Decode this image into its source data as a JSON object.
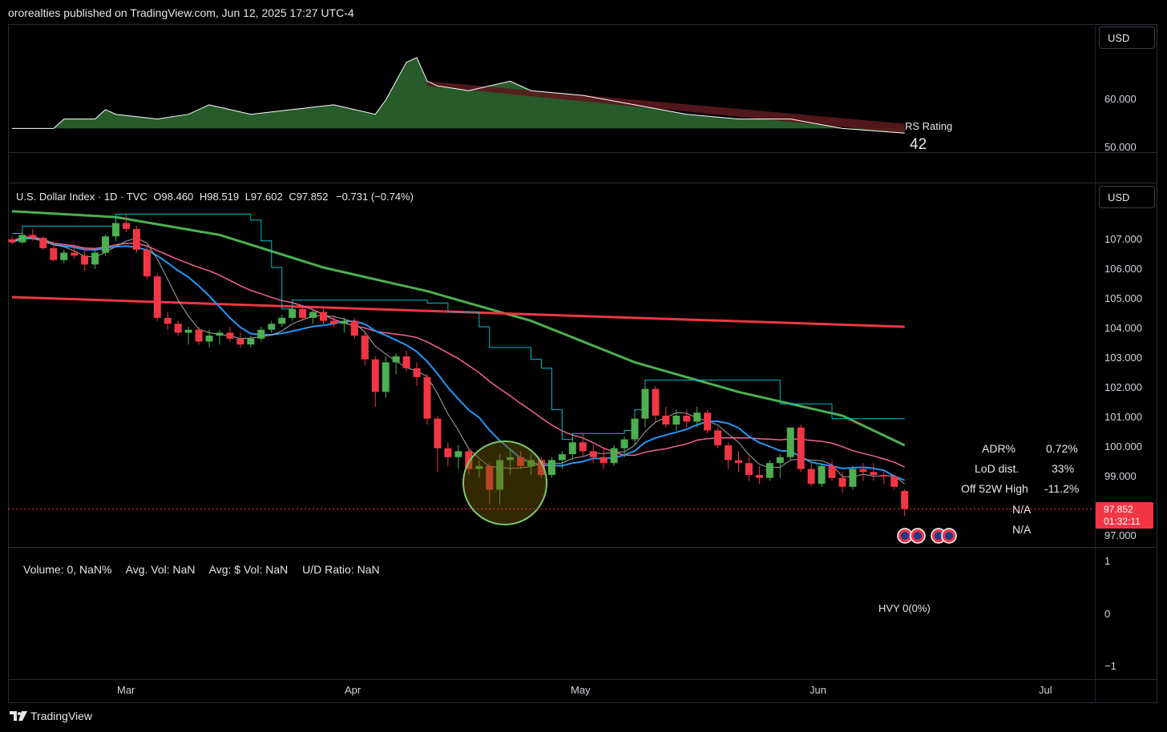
{
  "header": {
    "publisher_line": "ororealties published on TradingView.com, Jun 12, 2025 17:27 UTC-4"
  },
  "currency_buttons": [
    "USD",
    "USD"
  ],
  "rs_pane": {
    "label": "RS Rating",
    "value": "42",
    "axis_ticks": [
      "60.000",
      "50.000"
    ],
    "colors": {
      "above": "#2e6b33",
      "below": "#5a1a1d",
      "line": "#ffffff",
      "baseline": "#ff5252"
    }
  },
  "legend": {
    "symbol": "U.S. Dollar Index · 1D · TVC",
    "open_label": "O",
    "open": "98.460",
    "high_label": "H",
    "high": "98.519",
    "low_label": "L",
    "low": "97.602",
    "close_label": "C",
    "close": "97.852",
    "change": "−0.731 (−0.74%)"
  },
  "price_axis": [
    "107.000",
    "106.000",
    "105.000",
    "104.000",
    "103.000",
    "102.000",
    "101.000",
    "100.000",
    "99.000",
    "97.000"
  ],
  "last_price": {
    "price": "97.852",
    "countdown": "01:32:11"
  },
  "stats": [
    {
      "label": "ADR%",
      "value": "0.72%"
    },
    {
      "label": "LoD dist.",
      "value": "33%"
    },
    {
      "label": "Off 52W High",
      "value": "-11.2%"
    },
    {
      "label": "",
      "value": "N/A"
    },
    {
      "label": "",
      "value": "N/A"
    }
  ],
  "volume_pane": {
    "volume": "Volume: 0, NaN%",
    "avg_vol": "Avg. Vol: NaN",
    "avg_dollar_vol": "Avg: $ Vol: NaN",
    "ud_ratio": "U/D Ratio: NaN",
    "hvy": "HVY 0(0%)",
    "axis_ticks": [
      "1",
      "0",
      "−1"
    ]
  },
  "time_axis": [
    "Mar",
    "Apr",
    "May",
    "Jun",
    "Jul"
  ],
  "footer": {
    "brand": "TradingView"
  },
  "colors": {
    "up": "#4caf50",
    "down": "#f23645",
    "ma_green": "#4caf50",
    "ma_red": "#f23645",
    "ma_pink": "#f06292",
    "ma_blue": "#2196f3",
    "ma_cyan": "#00bcd4",
    "highlight_circle": "#7bc86c"
  },
  "chart_data": {
    "type": "candlestick",
    "candles": [
      [
        106.95,
        107.05,
        106.8,
        106.85
      ],
      [
        106.85,
        107.2,
        106.8,
        107.1
      ],
      [
        107.1,
        107.3,
        106.9,
        107.0
      ],
      [
        107.0,
        107.05,
        106.6,
        106.65
      ],
      [
        106.65,
        106.9,
        106.2,
        106.25
      ],
      [
        106.25,
        106.6,
        106.15,
        106.5
      ],
      [
        106.5,
        106.8,
        106.3,
        106.4
      ],
      [
        106.4,
        106.7,
        105.9,
        106.1
      ],
      [
        106.1,
        106.6,
        105.95,
        106.5
      ],
      [
        106.5,
        107.1,
        106.4,
        107.05
      ],
      [
        107.05,
        107.6,
        106.9,
        107.5
      ],
      [
        107.5,
        107.8,
        107.2,
        107.3
      ],
      [
        107.3,
        107.4,
        106.5,
        106.6
      ],
      [
        106.6,
        106.7,
        105.6,
        105.7
      ],
      [
        105.7,
        105.8,
        104.2,
        104.3
      ],
      [
        104.3,
        104.5,
        103.9,
        104.1
      ],
      [
        104.1,
        104.2,
        103.7,
        103.8
      ],
      [
        103.8,
        104.0,
        103.4,
        103.9
      ],
      [
        103.9,
        104.0,
        103.4,
        103.5
      ],
      [
        103.5,
        103.9,
        103.3,
        103.7
      ],
      [
        103.7,
        103.9,
        103.4,
        103.8
      ],
      [
        103.8,
        104.0,
        103.5,
        103.6
      ],
      [
        103.6,
        103.8,
        103.3,
        103.4
      ],
      [
        103.4,
        103.7,
        103.3,
        103.6
      ],
      [
        103.6,
        104.0,
        103.5,
        103.9
      ],
      [
        103.9,
        104.2,
        103.8,
        104.1
      ],
      [
        104.1,
        104.4,
        104.0,
        104.3
      ],
      [
        104.3,
        104.7,
        104.2,
        104.6
      ],
      [
        104.6,
        104.7,
        104.2,
        104.3
      ],
      [
        104.3,
        104.6,
        104.1,
        104.5
      ],
      [
        104.5,
        104.6,
        104.1,
        104.2
      ],
      [
        104.2,
        104.4,
        104.0,
        104.1
      ],
      [
        104.1,
        104.3,
        103.8,
        104.2
      ],
      [
        104.2,
        104.3,
        103.6,
        103.7
      ],
      [
        103.7,
        103.8,
        102.7,
        102.9
      ],
      [
        102.9,
        103.0,
        101.3,
        101.8
      ],
      [
        101.8,
        103.0,
        101.6,
        102.8
      ],
      [
        102.8,
        103.1,
        102.4,
        103.0
      ],
      [
        103.0,
        103.2,
        102.5,
        102.6
      ],
      [
        102.6,
        102.8,
        102.0,
        102.3
      ],
      [
        102.3,
        102.4,
        100.7,
        100.9
      ],
      [
        100.9,
        101.0,
        99.1,
        99.9
      ],
      [
        99.9,
        100.1,
        99.3,
        99.6
      ],
      [
        99.6,
        100.0,
        99.2,
        99.8
      ],
      [
        99.8,
        99.9,
        99.0,
        99.2
      ],
      [
        99.2,
        99.5,
        98.9,
        99.3
      ],
      [
        99.3,
        99.4,
        98.0,
        98.5
      ],
      [
        98.5,
        99.7,
        98.0,
        99.5
      ],
      [
        99.5,
        99.9,
        99.0,
        99.6
      ],
      [
        99.6,
        99.8,
        99.2,
        99.3
      ],
      [
        99.3,
        99.7,
        99.0,
        99.5
      ],
      [
        99.5,
        99.6,
        98.9,
        99.0
      ],
      [
        99.0,
        99.6,
        98.9,
        99.5
      ],
      [
        99.5,
        99.8,
        99.2,
        99.7
      ],
      [
        99.7,
        100.3,
        99.5,
        100.1
      ],
      [
        100.1,
        100.4,
        99.6,
        99.8
      ],
      [
        99.8,
        100.0,
        99.4,
        99.6
      ],
      [
        99.6,
        99.9,
        99.2,
        99.4
      ],
      [
        99.4,
        100.0,
        99.3,
        99.9
      ],
      [
        99.9,
        100.3,
        99.6,
        100.2
      ],
      [
        100.2,
        101.0,
        100.0,
        100.9
      ],
      [
        100.9,
        102.0,
        100.6,
        101.9
      ],
      [
        101.9,
        102.0,
        100.8,
        101.0
      ],
      [
        101.0,
        101.3,
        100.6,
        100.7
      ],
      [
        100.7,
        101.2,
        100.5,
        101.0
      ],
      [
        101.0,
        101.2,
        100.6,
        100.8
      ],
      [
        100.8,
        101.3,
        100.6,
        101.1
      ],
      [
        101.1,
        101.2,
        100.4,
        100.5
      ],
      [
        100.5,
        100.6,
        99.9,
        100.0
      ],
      [
        100.0,
        100.1,
        99.2,
        99.5
      ],
      [
        99.5,
        99.8,
        99.1,
        99.4
      ],
      [
        99.4,
        99.6,
        98.8,
        99.0
      ],
      [
        99.0,
        99.3,
        98.7,
        98.9
      ],
      [
        98.9,
        99.5,
        98.8,
        99.4
      ],
      [
        99.4,
        99.7,
        98.9,
        99.6
      ],
      [
        99.6,
        100.6,
        99.5,
        100.6
      ],
      [
        100.6,
        100.7,
        99.1,
        99.2
      ],
      [
        99.2,
        99.4,
        98.6,
        98.7
      ],
      [
        98.7,
        99.4,
        98.6,
        99.3
      ],
      [
        99.3,
        99.5,
        98.8,
        98.9
      ],
      [
        98.9,
        99.1,
        98.4,
        98.6
      ],
      [
        98.6,
        99.3,
        98.5,
        99.2
      ],
      [
        99.2,
        99.4,
        98.8,
        99.1
      ],
      [
        99.1,
        99.4,
        98.8,
        99.0
      ],
      [
        99.0,
        99.1,
        98.7,
        98.95
      ],
      [
        98.95,
        99.0,
        98.5,
        98.6
      ],
      [
        98.46,
        98.519,
        97.602,
        97.852
      ]
    ],
    "ma_red_200": [
      [
        0,
        105.0
      ],
      [
        86,
        104.0
      ]
    ],
    "ma_green_50": [
      [
        0,
        107.9
      ],
      [
        10,
        107.7
      ],
      [
        20,
        107.1
      ],
      [
        30,
        106.0
      ],
      [
        40,
        105.2
      ],
      [
        50,
        104.2
      ],
      [
        60,
        102.8
      ],
      [
        70,
        101.8
      ],
      [
        80,
        101.0
      ],
      [
        86,
        100.0
      ]
    ],
    "rs_line": [
      [
        0,
        54
      ],
      [
        4,
        54
      ],
      [
        5,
        56
      ],
      [
        8,
        56
      ],
      [
        9,
        58
      ],
      [
        10,
        57
      ],
      [
        14,
        56
      ],
      [
        17,
        57
      ],
      [
        19,
        59
      ],
      [
        21,
        58
      ],
      [
        23,
        57
      ],
      [
        27,
        58
      ],
      [
        31,
        59
      ],
      [
        35,
        57
      ],
      [
        36,
        60
      ],
      [
        38,
        68
      ],
      [
        39,
        69
      ],
      [
        40,
        64
      ],
      [
        41,
        63
      ],
      [
        44,
        62
      ],
      [
        46,
        63
      ],
      [
        48,
        64
      ],
      [
        50,
        62
      ],
      [
        55,
        61
      ],
      [
        60,
        59
      ],
      [
        65,
        57
      ],
      [
        70,
        56
      ],
      [
        75,
        56
      ],
      [
        80,
        54
      ],
      [
        86,
        53
      ]
    ]
  }
}
